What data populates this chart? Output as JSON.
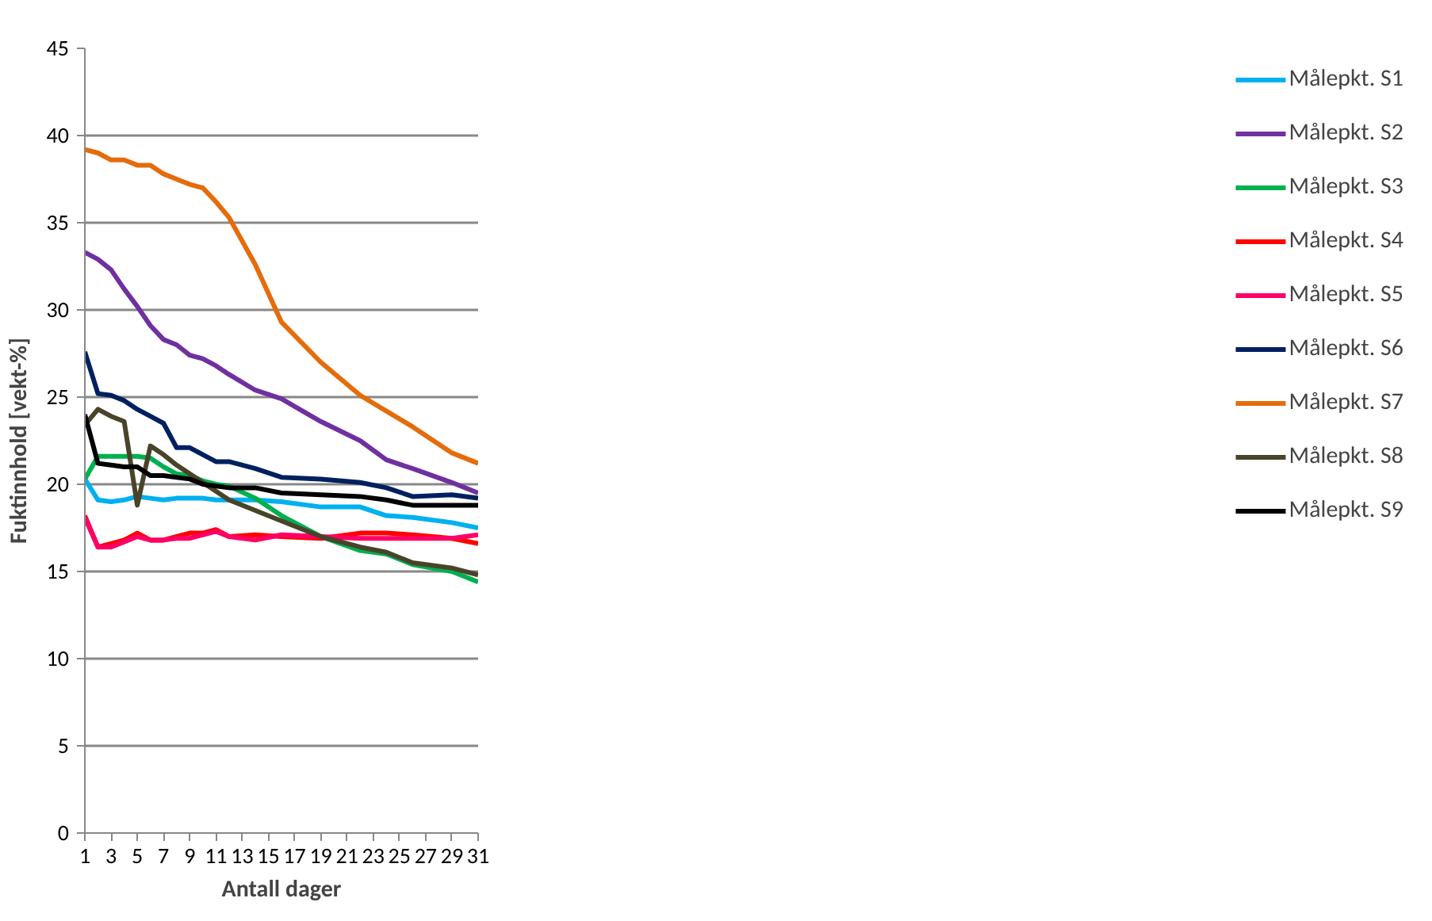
{
  "chart_data": {
    "type": "line",
    "xlabel": "Antall dager",
    "ylabel": "Fuktinnhold [vekt-%]",
    "x": [
      1,
      2,
      3,
      4,
      5,
      6,
      7,
      8,
      9,
      10,
      11,
      12,
      14,
      16,
      19,
      22,
      24,
      26,
      29,
      31
    ],
    "xlim": [
      1,
      31
    ],
    "xticks": [
      1,
      3,
      5,
      7,
      9,
      11,
      13,
      15,
      17,
      19,
      21,
      23,
      25,
      27,
      29,
      31
    ],
    "ylim": [
      0,
      45
    ],
    "yticks": [
      0,
      5,
      10,
      15,
      20,
      25,
      30,
      35,
      40,
      45
    ],
    "grid": "y",
    "legend": "right",
    "marker": "none",
    "line_style": "solid",
    "series": [
      {
        "name": "Målepkt. S1",
        "color": "#00b0f0",
        "values": [
          20.3,
          19.1,
          19.0,
          19.1,
          19.3,
          19.2,
          19.1,
          19.2,
          19.2,
          19.2,
          19.1,
          19.1,
          19.1,
          19.0,
          18.7,
          18.7,
          18.2,
          18.1,
          17.8,
          17.5
        ]
      },
      {
        "name": "Målepkt. S2",
        "color": "#7030a0",
        "values": [
          33.3,
          32.9,
          32.3,
          31.2,
          30.2,
          29.1,
          28.3,
          28.0,
          27.4,
          27.2,
          26.8,
          26.3,
          25.4,
          24.9,
          23.6,
          22.5,
          21.4,
          20.9,
          20.1,
          19.5
        ]
      },
      {
        "name": "Målepkt. S3",
        "color": "#00b050",
        "values": [
          20.3,
          21.6,
          21.6,
          21.6,
          21.6,
          21.5,
          21.0,
          20.6,
          20.5,
          20.2,
          20.0,
          19.9,
          19.2,
          18.2,
          17.0,
          16.2,
          16.0,
          15.4,
          15.0,
          14.4
        ]
      },
      {
        "name": "Målepkt. S4",
        "color": "#ff0000",
        "values": [
          18.2,
          16.4,
          16.6,
          16.8,
          17.2,
          16.8,
          16.8,
          17.0,
          17.2,
          17.2,
          17.4,
          17.0,
          17.1,
          17.0,
          16.9,
          17.2,
          17.2,
          17.1,
          16.9,
          16.6
        ]
      },
      {
        "name": "Målepkt. S5",
        "color": "#ff0066",
        "values": [
          18.1,
          16.4,
          16.4,
          16.7,
          17.0,
          16.8,
          16.8,
          16.9,
          16.9,
          17.1,
          17.3,
          17.0,
          16.8,
          17.1,
          17.0,
          16.9,
          16.9,
          16.9,
          16.9,
          17.1
        ]
      },
      {
        "name": "Målepkt. S6",
        "color": "#002060",
        "values": [
          27.6,
          25.2,
          25.1,
          24.8,
          24.3,
          23.9,
          23.5,
          22.1,
          22.1,
          21.7,
          21.3,
          21.3,
          20.9,
          20.4,
          20.3,
          20.1,
          19.8,
          19.3,
          19.4,
          19.2
        ]
      },
      {
        "name": "Målepkt. S7",
        "color": "#e46c0a",
        "values": [
          39.2,
          39.0,
          38.6,
          38.6,
          38.3,
          38.3,
          37.8,
          37.5,
          37.2,
          37.0,
          36.2,
          35.3,
          32.6,
          29.3,
          27.0,
          25.1,
          24.2,
          23.3,
          21.8,
          21.2
        ]
      },
      {
        "name": "Målepkt. S8",
        "color": "#494429",
        "values": [
          23.4,
          24.3,
          23.9,
          23.6,
          18.8,
          22.2,
          21.7,
          21.1,
          20.6,
          20.1,
          19.6,
          19.1,
          18.5,
          17.9,
          17.0,
          16.4,
          16.1,
          15.5,
          15.2,
          14.8
        ]
      },
      {
        "name": "Målepkt. S9",
        "color": "#000000",
        "values": [
          24.0,
          21.2,
          21.1,
          21.0,
          21.0,
          20.5,
          20.5,
          20.4,
          20.3,
          20.0,
          19.9,
          19.8,
          19.8,
          19.5,
          19.4,
          19.3,
          19.1,
          18.8,
          18.8,
          18.8
        ]
      }
    ]
  }
}
